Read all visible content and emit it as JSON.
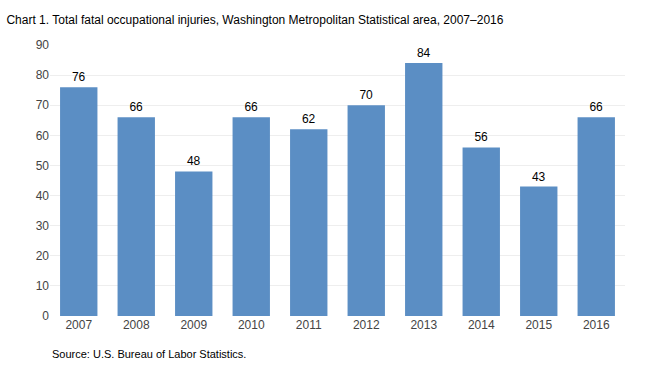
{
  "chart_data": {
    "type": "bar",
    "title": "Chart 1. Total fatal occupational injuries, Washington Metropolitan Statistical area, 2007–2016",
    "source": "Source: U.S. Bureau of Labor Statistics.",
    "categories": [
      "2007",
      "2008",
      "2009",
      "2010",
      "2011",
      "2012",
      "2013",
      "2014",
      "2015",
      "2016"
    ],
    "values": [
      76,
      66,
      48,
      66,
      62,
      70,
      84,
      56,
      43,
      66
    ],
    "color": "#5b8ec4",
    "ylim": [
      0,
      90
    ],
    "yticks": [
      0,
      10,
      20,
      30,
      40,
      50,
      60,
      70,
      80,
      90
    ],
    "grid": true,
    "data_labels": true
  }
}
